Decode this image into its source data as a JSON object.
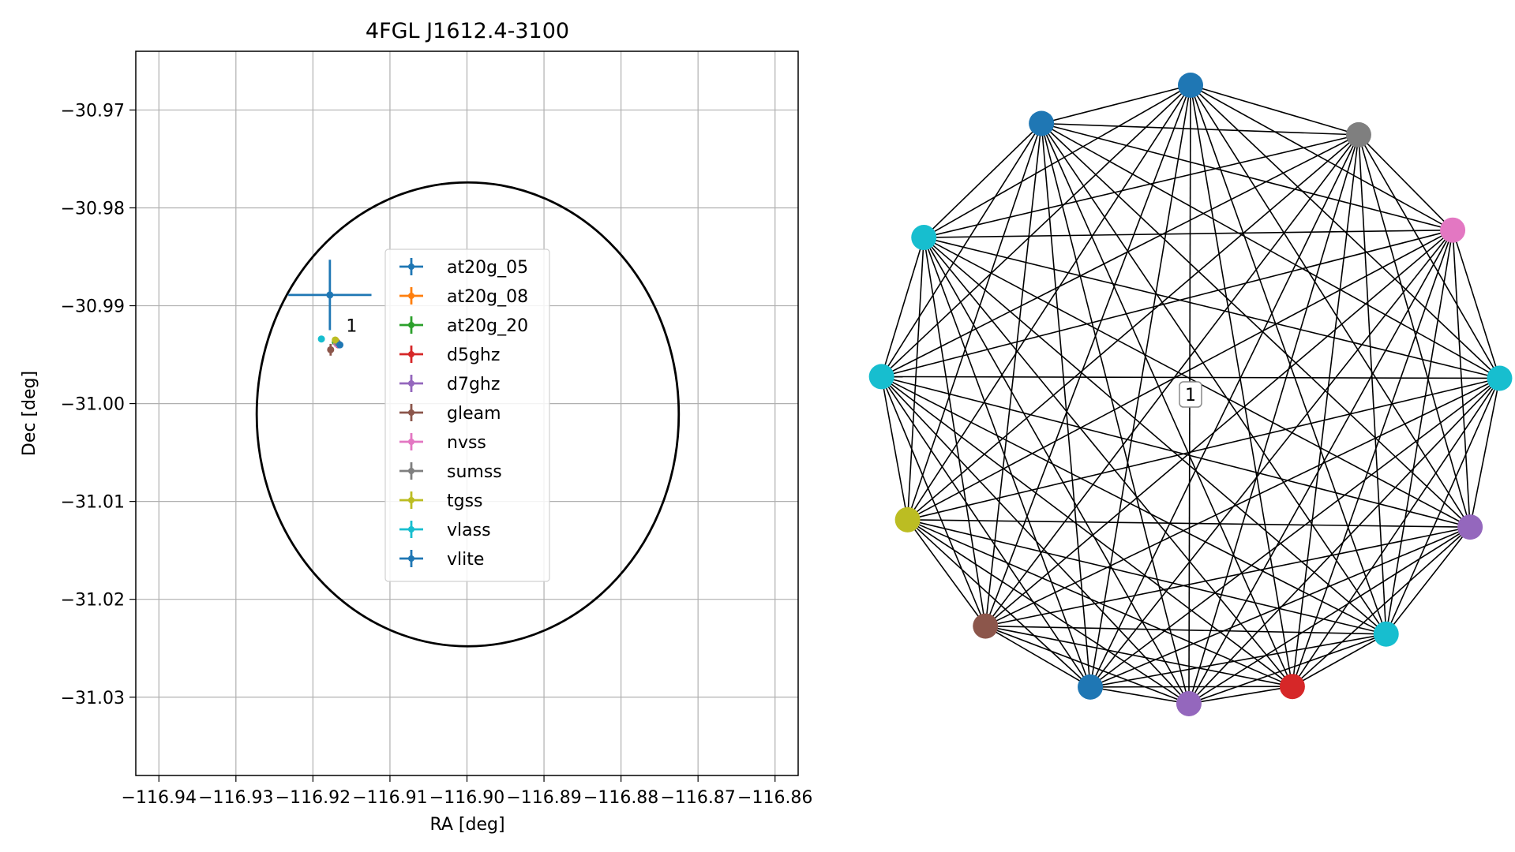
{
  "chart_data": [
    {
      "type": "scatter",
      "title": "4FGL J1612.4-3100",
      "xlabel": "RA [deg]",
      "ylabel": "Dec [deg]",
      "xlim": [
        -116.943,
        -116.857
      ],
      "ylim": [
        -31.038,
        -30.964
      ],
      "x_ticks": [
        -116.94,
        -116.93,
        -116.92,
        -116.91,
        -116.9,
        -116.89,
        -116.88,
        -116.87,
        -116.86
      ],
      "x_tick_labels": [
        "−116.94",
        "−116.93",
        "−116.92",
        "−116.91",
        "−116.90",
        "−116.89",
        "−116.88",
        "−116.87",
        "−116.86"
      ],
      "y_ticks": [
        -30.97,
        -30.98,
        -30.99,
        -31.0,
        -31.01,
        -31.02,
        -31.03
      ],
      "y_tick_labels": [
        "−30.97",
        "−30.98",
        "−30.99",
        "−31.00",
        "−31.01",
        "−31.02",
        "−31.03"
      ],
      "grid": true,
      "legend_position": "center",
      "series": [
        {
          "name": "at20g_05",
          "color": "#1f77b4",
          "x": -116.9178,
          "y": -30.9889,
          "xerr": 0.0054,
          "yerr": 0.0036
        },
        {
          "name": "at20g_08",
          "color": "#ff7f0e",
          "x": -116.917,
          "y": -30.9936,
          "xerr": 0.0002,
          "yerr": 0.0002
        },
        {
          "name": "at20g_20",
          "color": "#2ca02c",
          "x": -116.9171,
          "y": -30.9937,
          "xerr": 0.0002,
          "yerr": 0.0002
        },
        {
          "name": "d5ghz",
          "color": "#d62728",
          "x": -116.9167,
          "y": -30.994,
          "xerr": 0.0002,
          "yerr": 0.0002
        },
        {
          "name": "d7ghz",
          "color": "#9467bd",
          "x": -116.9166,
          "y": -30.994,
          "xerr": 0.0002,
          "yerr": 0.0002
        },
        {
          "name": "gleam",
          "color": "#8c564b",
          "x": -116.9177,
          "y": -30.9945,
          "xerr": 0.0003,
          "yerr": 0.0006
        },
        {
          "name": "nvss",
          "color": "#e377c2",
          "x": -116.9169,
          "y": -30.9939,
          "xerr": 0.0002,
          "yerr": 0.0002
        },
        {
          "name": "sumss",
          "color": "#7f7f7f",
          "x": -116.9168,
          "y": -30.9938,
          "xerr": 0.0002,
          "yerr": 0.0002
        },
        {
          "name": "tgss",
          "color": "#bcbd22",
          "x": -116.9171,
          "y": -30.9935,
          "xerr": 0.0003,
          "yerr": 0.0003
        },
        {
          "name": "vlass",
          "color": "#17becf",
          "x": -116.9189,
          "y": -30.9934,
          "xerr": 0.0001,
          "yerr": 0.0001
        },
        {
          "name": "vlite",
          "color": "#1f77b4",
          "x": -116.9165,
          "y": -30.994,
          "xerr": 0.0002,
          "yerr": 0.0002
        }
      ],
      "annotations": [
        {
          "text": "1",
          "x": -116.9157,
          "y": -30.992
        }
      ],
      "ellipse": {
        "cx": -116.8999,
        "cy": -31.0011,
        "rx": 0.0274,
        "ry": 0.0237,
        "color": "#000000"
      }
    },
    {
      "type": "network",
      "nodes": [
        {
          "angle": 90.0,
          "color": "#1f77b4"
        },
        {
          "angle": 57.1,
          "color": "#7f7f7f"
        },
        {
          "angle": 32.1,
          "color": "#e377c2"
        },
        {
          "angle": 3.0,
          "color": "#17becf"
        },
        {
          "angle": -25.4,
          "color": "#9467bd"
        },
        {
          "angle": -50.8,
          "color": "#17becf"
        },
        {
          "angle": -70.8,
          "color": "#d62728"
        },
        {
          "angle": -90.3,
          "color": "#9467bd"
        },
        {
          "angle": -108.9,
          "color": "#1f77b4"
        },
        {
          "angle": -131.5,
          "color": "#8c564b"
        },
        {
          "angle": -156.1,
          "color": "#bcbd22"
        },
        {
          "angle": 176.7,
          "color": "#17becf"
        },
        {
          "angle": 149.5,
          "color": "#17becf"
        },
        {
          "angle": 118.8,
          "color": "#1f77b4"
        }
      ],
      "center_label": "1"
    }
  ]
}
